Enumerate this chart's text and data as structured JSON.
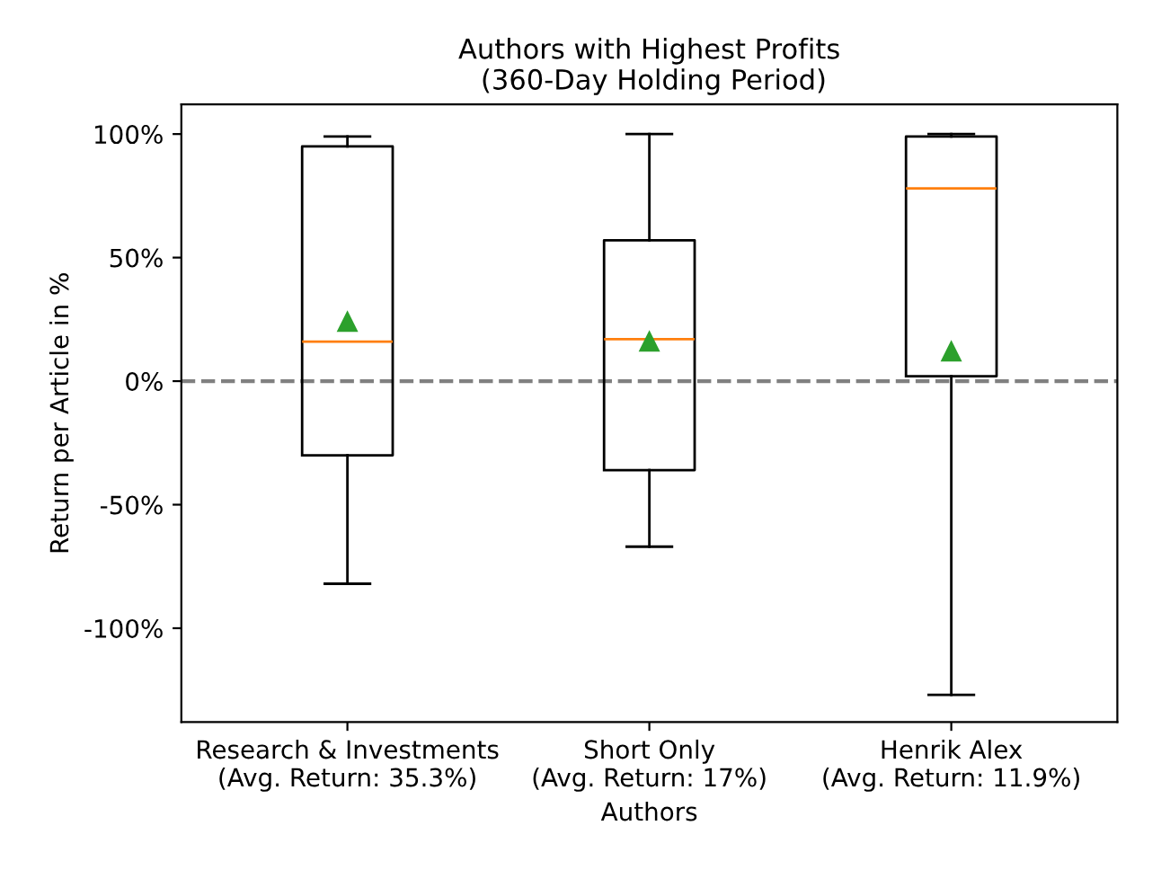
{
  "chart_data": {
    "type": "box",
    "title": "Authors with Highest Profits\n (360-Day Holding Period)",
    "xlabel": "Authors",
    "ylabel": "Return per Article in %",
    "categories": [
      "Research & Investments\n(Avg. Return: 35.3%)",
      "Short Only\n(Avg. Return: 17%)",
      "Henrik Alex\n(Avg. Return: 11.9%)"
    ],
    "boxes": [
      {
        "low": -82,
        "q1": -30,
        "median": 16,
        "q3": 95,
        "high": 99,
        "mean": 24
      },
      {
        "low": -67,
        "q1": -36,
        "median": 17,
        "q3": 57,
        "high": 100,
        "mean": 16
      },
      {
        "low": -127,
        "q1": 2,
        "median": 78,
        "q3": 99,
        "high": 100,
        "mean": 12
      }
    ],
    "ylim": [
      -138,
      112
    ],
    "yticks": [
      {
        "value": -100,
        "label": "-100%"
      },
      {
        "value": -50,
        "label": "-50%"
      },
      {
        "value": 0,
        "label": "0%"
      },
      {
        "value": 50,
        "label": "50%"
      },
      {
        "value": 100,
        "label": "100%"
      }
    ],
    "ref_lines": [
      {
        "axis": "y",
        "value": 0,
        "color": "#808080",
        "line_style": "dashed"
      }
    ],
    "grid": false,
    "legend": false
  }
}
